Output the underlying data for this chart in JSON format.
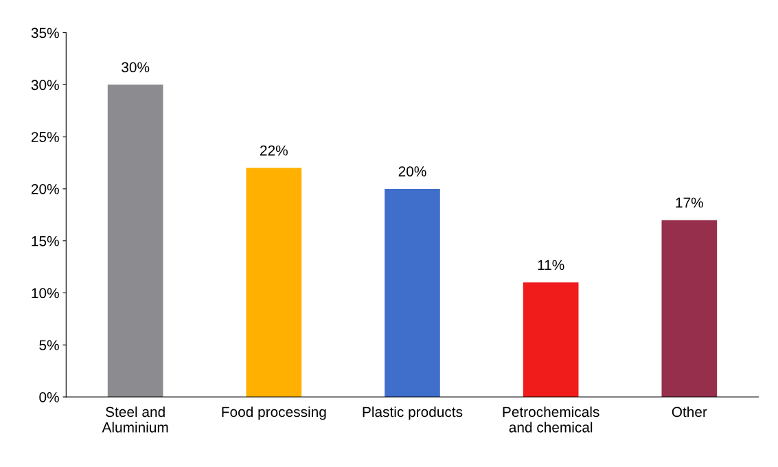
{
  "chart_data": {
    "type": "bar",
    "categories": [
      "Steel and\nAluminium",
      "Food processing",
      "Plastic products",
      "Petrochemicals\nand chemical",
      "Other"
    ],
    "values": [
      30,
      22,
      20,
      11,
      17
    ],
    "value_labels": [
      "30%",
      "22%",
      "20%",
      "11%",
      "17%"
    ],
    "colors": [
      "#8c8b90",
      "#ffb000",
      "#3f6ecb",
      "#f01c1c",
      "#962f4b"
    ],
    "ylim": [
      0,
      35
    ],
    "yticks": [
      {
        "value": 0,
        "label": "0%"
      },
      {
        "value": 5,
        "label": "5%"
      },
      {
        "value": 10,
        "label": "10%"
      },
      {
        "value": 15,
        "label": "15%"
      },
      {
        "value": 20,
        "label": "20%"
      },
      {
        "value": 25,
        "label": "25%"
      },
      {
        "value": 30,
        "label": "30%"
      },
      {
        "value": 35,
        "label": "35%"
      }
    ],
    "grid": false,
    "legend": false
  }
}
